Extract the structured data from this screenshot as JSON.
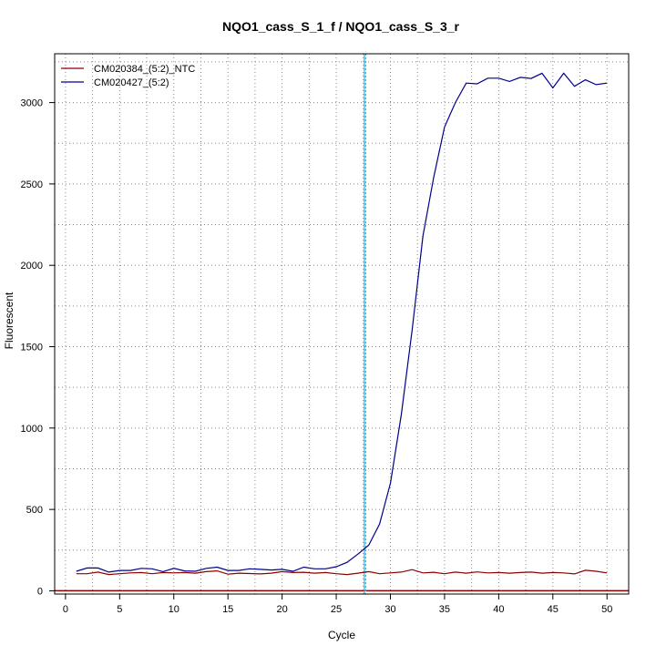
{
  "chart_data": {
    "type": "line",
    "title": "NQO1_cass_S_1_f / NQO1_cass_S_3_r",
    "xlabel": "Cycle",
    "ylabel": "Fluorescent",
    "xlim": [
      -1,
      52
    ],
    "ylim": [
      -20,
      3300
    ],
    "x_ticks": [
      0,
      5,
      10,
      15,
      20,
      25,
      30,
      35,
      40,
      45,
      50
    ],
    "y_ticks": [
      0,
      500,
      1000,
      1500,
      2000,
      2500,
      3000
    ],
    "grid": true,
    "legend_position": "top-left",
    "threshold": 0,
    "vline": 27.6,
    "x": [
      1,
      2,
      3,
      4,
      5,
      6,
      7,
      8,
      9,
      10,
      11,
      12,
      13,
      14,
      15,
      16,
      17,
      18,
      19,
      20,
      21,
      22,
      23,
      24,
      25,
      26,
      27,
      28,
      29,
      30,
      31,
      32,
      33,
      34,
      35,
      36,
      37,
      38,
      39,
      40,
      41,
      42,
      43,
      44,
      45,
      46,
      47,
      48,
      49,
      50
    ],
    "series": [
      {
        "name": "CM020384_(5:2)_NTC",
        "color": "#8b0000",
        "values": [
          105,
          105,
          115,
          100,
          105,
          110,
          112,
          105,
          112,
          110,
          112,
          108,
          118,
          122,
          102,
          108,
          106,
          104,
          108,
          118,
          112,
          114,
          108,
          112,
          105,
          100,
          108,
          118,
          105,
          110,
          115,
          130,
          110,
          114,
          105,
          115,
          108,
          116,
          110,
          112,
          108,
          112,
          115,
          108,
          112,
          110,
          104,
          126,
          120,
          110
        ]
      },
      {
        "name": "CM020427_(5:2)",
        "color": "#00008b",
        "values": [
          120,
          140,
          140,
          115,
          125,
          125,
          138,
          135,
          118,
          138,
          122,
          120,
          138,
          145,
          125,
          125,
          135,
          132,
          128,
          132,
          120,
          145,
          135,
          135,
          148,
          175,
          225,
          280,
          410,
          660,
          1080,
          1600,
          2180,
          2540,
          2850,
          3000,
          3120,
          3115,
          3150,
          3150,
          3130,
          3155,
          3148,
          3180,
          3090,
          3180,
          3100,
          3140,
          3110,
          3120
        ]
      }
    ]
  }
}
